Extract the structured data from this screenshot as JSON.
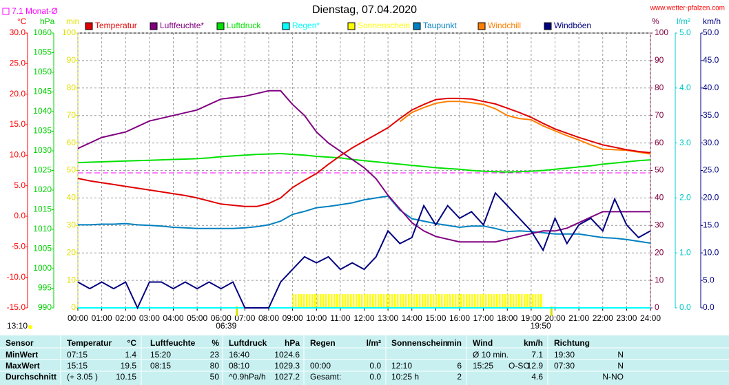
{
  "chart_data": {
    "type": "line",
    "title": "Dienstag, 07.04.2020",
    "source": "www.wetter-pfalzen.com",
    "xlim": [
      0,
      24
    ],
    "xticks": [
      {
        "value": 0,
        "label": "00:00"
      },
      {
        "value": 1,
        "label": "01:00"
      },
      {
        "value": 2,
        "label": "02:00"
      },
      {
        "value": 3,
        "label": "03:00"
      },
      {
        "value": 4,
        "label": "04:00"
      },
      {
        "value": 5,
        "label": "05:00"
      },
      {
        "value": 6,
        "label": "06:00"
      },
      {
        "value": 7,
        "label": "07:00"
      },
      {
        "value": 8,
        "label": "08:00"
      },
      {
        "value": 9,
        "label": "09:00"
      },
      {
        "value": 10,
        "label": "10:00"
      },
      {
        "value": 11,
        "label": "11:00"
      },
      {
        "value": 12,
        "label": "12:00"
      },
      {
        "value": 13,
        "label": "13:00"
      },
      {
        "value": 14,
        "label": "14:00"
      },
      {
        "value": 15,
        "label": "15:00"
      },
      {
        "value": 16,
        "label": "16:00"
      },
      {
        "value": 17,
        "label": "17:00"
      },
      {
        "value": 18,
        "label": "18:00"
      },
      {
        "value": 19,
        "label": "19:00"
      },
      {
        "value": 20,
        "label": "20:00"
      },
      {
        "value": 21,
        "label": "21:00"
      },
      {
        "value": 22,
        "label": "22:00"
      },
      {
        "value": 23,
        "label": "23:00"
      },
      {
        "value": 24,
        "label": "24:00"
      }
    ],
    "grid": true,
    "axes": [
      {
        "id": "temp",
        "label": "°C",
        "color": "#ff0000",
        "lim": [
          -15,
          30
        ],
        "ticks": [
          {
            "value": -15,
            "label": "-15.0"
          },
          {
            "value": -10,
            "label": "-10.0"
          },
          {
            "value": -5,
            "label": "-5.0"
          },
          {
            "value": 0,
            "label": "0.0"
          },
          {
            "value": 5,
            "label": "5.0"
          },
          {
            "value": 10,
            "label": "10.0"
          },
          {
            "value": 15,
            "label": "15.0"
          },
          {
            "value": 20,
            "label": "20.0"
          },
          {
            "value": 25,
            "label": "25.0"
          },
          {
            "value": 30,
            "label": "30.0"
          }
        ]
      },
      {
        "id": "press",
        "label": "hPa",
        "color": "#00d000",
        "lim": [
          990,
          1060
        ],
        "ticks": [
          990,
          995,
          1000,
          1005,
          1010,
          1015,
          1020,
          1025,
          1030,
          1035,
          1040,
          1045,
          1050,
          1055,
          1060
        ]
      },
      {
        "id": "min",
        "label": "min",
        "color": "#e0e000",
        "lim": [
          0,
          100
        ],
        "ticks": [
          0,
          10,
          20,
          30,
          40,
          50,
          60,
          70,
          80,
          90,
          100
        ]
      },
      {
        "id": "hum",
        "label": "%",
        "color": "#800040",
        "lim": [
          0,
          100
        ],
        "ticks": [
          0,
          10,
          20,
          30,
          40,
          50,
          60,
          70,
          80,
          90,
          100
        ],
        "grid": true
      },
      {
        "id": "rain",
        "label": "l/m²",
        "color": "#00c8c8",
        "lim": [
          0,
          5
        ],
        "ticks": [
          {
            "value": 0,
            "label": "0.0"
          },
          {
            "value": 1,
            "label": "1.0"
          },
          {
            "value": 2,
            "label": "2.0"
          },
          {
            "value": 3,
            "label": "3.0"
          },
          {
            "value": 4,
            "label": "4.0"
          },
          {
            "value": 5,
            "label": "5.0"
          }
        ]
      },
      {
        "id": "wind",
        "label": "km/h",
        "color": "#000080",
        "lim": [
          0,
          50
        ],
        "ticks": [
          {
            "value": 0,
            "label": "0.0"
          },
          {
            "value": 5,
            "label": "5.0"
          },
          {
            "value": 10,
            "label": "10.0"
          },
          {
            "value": 15,
            "label": "15.0"
          },
          {
            "value": 20,
            "label": "20.0"
          },
          {
            "value": 25,
            "label": "25.0"
          },
          {
            "value": 30,
            "label": "30.0"
          },
          {
            "value": 35,
            "label": "35.0"
          },
          {
            "value": 40,
            "label": "40.0"
          },
          {
            "value": 45,
            "label": "45.0"
          },
          {
            "value": 50,
            "label": "50.0"
          }
        ]
      }
    ],
    "reference_line": {
      "value": 7.1,
      "label": "7.1 Monat-Ø",
      "color": "#ff00ff",
      "axis": "temp"
    },
    "sun_events": [
      {
        "x": 6.65,
        "label": "06:39"
      },
      {
        "x": 19.833,
        "label": "19:50"
      }
    ],
    "day_length": "13:10",
    "x": [
      0,
      0.5,
      1,
      1.5,
      2,
      2.5,
      3,
      3.5,
      4,
      4.5,
      5,
      5.5,
      6,
      6.5,
      7,
      7.5,
      8,
      8.5,
      9,
      9.5,
      10,
      10.5,
      11,
      11.5,
      12,
      12.5,
      13,
      13.5,
      14,
      14.5,
      15,
      15.5,
      16,
      16.5,
      17,
      17.5,
      18,
      18.5,
      19,
      19.5,
      20,
      20.5,
      21,
      21.5,
      22,
      22.5,
      23,
      23.5,
      24
    ],
    "series": [
      {
        "name": "Temperatur",
        "color": "#e00000",
        "axis": "temp",
        "style": "line",
        "values": [
          6.2,
          5.8,
          5.5,
          5.2,
          4.9,
          4.6,
          4.3,
          4.0,
          3.7,
          3.4,
          3.0,
          2.5,
          2.0,
          1.8,
          1.6,
          1.6,
          2.1,
          3.0,
          4.7,
          5.9,
          7.0,
          8.5,
          9.9,
          11.2,
          12.3,
          13.4,
          14.5,
          16.0,
          17.4,
          18.3,
          19.1,
          19.3,
          19.3,
          19.2,
          18.8,
          18.4,
          17.7,
          17.0,
          16.2,
          15.2,
          14.3,
          13.6,
          12.9,
          12.3,
          11.7,
          11.3,
          10.9,
          10.6,
          10.4
        ]
      },
      {
        "name": "Luftfeuchte*",
        "color": "#800080",
        "axis": "hum",
        "style": "line",
        "values": [
          58,
          60,
          62,
          63,
          64,
          66,
          68,
          69,
          70,
          71,
          72,
          74,
          76,
          76.5,
          77,
          78,
          79,
          79,
          74,
          70,
          64,
          60,
          57,
          54,
          51,
          47,
          41,
          36,
          31,
          28,
          26,
          25,
          24,
          24,
          24,
          24,
          25,
          26,
          27,
          28,
          28,
          29,
          31,
          33,
          35,
          35,
          35,
          35,
          35
        ]
      },
      {
        "name": "Luftdruck",
        "color": "#00e000",
        "axis": "press",
        "style": "line",
        "values": [
          1027.0,
          1027.1,
          1027.2,
          1027.3,
          1027.4,
          1027.5,
          1027.6,
          1027.7,
          1027.8,
          1027.9,
          1028.0,
          1028.2,
          1028.5,
          1028.7,
          1028.9,
          1029.1,
          1029.2,
          1029.3,
          1029.1,
          1028.9,
          1028.6,
          1028.4,
          1028.2,
          1027.8,
          1027.5,
          1027.2,
          1026.9,
          1026.6,
          1026.3,
          1026.0,
          1025.7,
          1025.5,
          1025.3,
          1025.0,
          1024.8,
          1024.7,
          1024.6,
          1024.7,
          1024.8,
          1025.0,
          1025.3,
          1025.6,
          1025.9,
          1026.2,
          1026.6,
          1026.9,
          1027.2,
          1027.5,
          1027.7
        ]
      },
      {
        "name": "Regen*",
        "color": "#00ffff",
        "axis": "rain",
        "style": "line",
        "values": [
          0,
          0,
          0,
          0,
          0,
          0,
          0,
          0,
          0,
          0,
          0,
          0,
          0,
          0,
          0,
          0,
          0,
          0,
          0,
          0,
          0,
          0,
          0,
          0,
          0,
          0,
          0,
          0,
          0,
          0,
          0,
          0,
          0,
          0,
          0,
          0,
          0,
          0,
          0,
          0,
          0,
          0,
          0,
          0,
          0,
          0,
          0,
          0,
          0
        ]
      },
      {
        "name": "Sonnenschein",
        "color": "#ffff00",
        "axis": "min",
        "style": "bar",
        "values": [
          0,
          0,
          0,
          0,
          0,
          0,
          0,
          0,
          0,
          0,
          0,
          0,
          0,
          0,
          0,
          0,
          0,
          0,
          5,
          5,
          5,
          5,
          5,
          5,
          5,
          5,
          5,
          5,
          5,
          5,
          5,
          5,
          5,
          5,
          5,
          5,
          5,
          5,
          5,
          0,
          0,
          0,
          0,
          0,
          0,
          0,
          0,
          0,
          0
        ]
      },
      {
        "name": "Taupunkt",
        "color": "#0080c0",
        "axis": "temp",
        "style": "line",
        "values": [
          -1.4,
          -1.4,
          -1.3,
          -1.3,
          -1.2,
          -1.4,
          -1.5,
          -1.6,
          -1.8,
          -1.9,
          -2.0,
          -2.0,
          -2.0,
          -2.0,
          -1.9,
          -1.7,
          -1.4,
          -0.8,
          0.3,
          0.8,
          1.4,
          1.6,
          1.9,
          2.2,
          2.7,
          3.0,
          3.3,
          1.0,
          -0.4,
          -0.8,
          -1.2,
          -1.5,
          -1.8,
          -1.6,
          -1.6,
          -2.0,
          -2.5,
          -2.4,
          -2.5,
          -2.7,
          -2.9,
          -2.9,
          -2.9,
          -3.2,
          -3.5,
          -3.6,
          -3.8,
          -4.1,
          -4.4
        ]
      },
      {
        "name": "Windchill",
        "color": "#ff8000",
        "axis": "temp",
        "style": "line",
        "values": [
          null,
          null,
          null,
          null,
          null,
          null,
          null,
          null,
          null,
          null,
          null,
          null,
          null,
          null,
          null,
          null,
          null,
          null,
          null,
          null,
          null,
          null,
          null,
          null,
          null,
          null,
          null,
          15.5,
          17.0,
          17.8,
          18.5,
          18.8,
          18.8,
          18.6,
          18.3,
          17.6,
          16.5,
          16.0,
          15.8,
          14.8,
          14.0,
          13.2,
          12.5,
          11.7,
          11.0,
          10.9,
          10.8,
          10.5,
          10.2
        ]
      },
      {
        "name": "Windböen",
        "color": "#000080",
        "axis": "wind",
        "style": "line",
        "values": [
          4.7,
          3.5,
          4.7,
          3.5,
          4.7,
          0,
          4.7,
          4.7,
          3.5,
          4.7,
          3.5,
          4.7,
          3.5,
          4.7,
          0,
          0,
          0,
          4.7,
          7.0,
          9.3,
          8.2,
          9.3,
          7.0,
          8.2,
          7.0,
          9.3,
          14.0,
          11.7,
          12.8,
          18.6,
          15.1,
          18.6,
          16.3,
          17.5,
          15.1,
          20.9,
          18.6,
          16.3,
          14.0,
          10.5,
          16.3,
          11.7,
          15.1,
          16.3,
          14.0,
          19.8,
          15.1,
          12.8,
          14.0
        ]
      }
    ]
  },
  "table": {
    "rows": [
      [
        "Sensor",
        "Temperatur",
        "°C",
        "Luftfeuchte",
        "%",
        "Luftdruck",
        "hPa",
        "Regen",
        "l/m²",
        "Sonnenschein",
        "min",
        "Wind",
        null,
        "km/h",
        "Richtung",
        null
      ],
      [
        "MinWert",
        "07:15",
        "1.4",
        "15:20",
        "23",
        "16:40",
        "1024.6",
        null,
        null,
        null,
        null,
        "Ø 10 min.",
        null,
        "7.1",
        "19:30",
        "N"
      ],
      [
        "MaxWert",
        "15:15",
        "19.5",
        "08:15",
        "80",
        "08:10",
        "1029.3",
        "00:00",
        "0.0",
        "12:10",
        "6",
        "15:25",
        "O-SO",
        "12.9",
        "07:30",
        "N"
      ],
      [
        "Durchschnitt",
        "(+ 3.05 )",
        "10.15",
        null,
        "50",
        "^0.9hPa/h",
        "1027.2",
        "Gesamt:",
        "0.0",
        "10:25 h",
        "2",
        null,
        null,
        "4.6",
        null,
        "N-NO"
      ]
    ]
  }
}
